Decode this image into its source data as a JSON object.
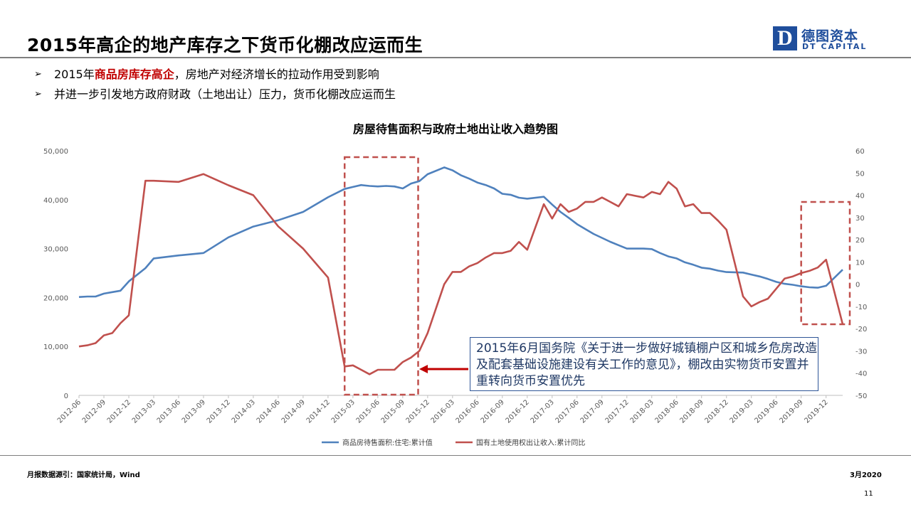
{
  "header": {
    "title": "2015年高企的地产库存之下货币化棚改应运而生",
    "logo_cn": "德图资本",
    "logo_en": "DT CAPITAL",
    "logo_letter": "D"
  },
  "bullets": [
    {
      "mark": "➢",
      "pre": "2015年",
      "highlight": "商品房库存高企",
      "post": "，房地产对经济增长的拉动作用受到影响"
    },
    {
      "mark": "➢",
      "pre": "并进一步引发地方政府财政（土地出让）压力，货币化棚改应运而生",
      "highlight": "",
      "post": ""
    }
  ],
  "callout": {
    "text": "2015年6月国务院《关于进一步做好城镇棚户区和城乡危房改造及配套基础设施建设有关工作的意见》，棚改由实物货币安置并重转向货币安置优先"
  },
  "colors": {
    "blue_series": "#4f81bd",
    "red_series": "#c0504d",
    "dash_box": "#c0504d",
    "arrow": "#c00000"
  },
  "chart_data": {
    "type": "line",
    "title": "房屋待售面积与政府土地出让收入趋势图",
    "x": [
      "2012-06",
      "2012-07",
      "2012-08",
      "2012-09",
      "2012-10",
      "2012-11",
      "2012-12",
      "2013-02",
      "2013-03",
      "2013-06",
      "2013-09",
      "2013-12",
      "2014-03",
      "2014-06",
      "2014-09",
      "2014-12",
      "2015-02",
      "2015-03",
      "2015-04",
      "2015-05",
      "2015-06",
      "2015-07",
      "2015-08",
      "2015-09",
      "2015-10",
      "2015-11",
      "2015-12",
      "2016-02",
      "2016-03",
      "2016-04",
      "2016-05",
      "2016-06",
      "2016-07",
      "2016-08",
      "2016-09",
      "2016-10",
      "2016-11",
      "2016-12",
      "2017-02",
      "2017-03",
      "2017-04",
      "2017-05",
      "2017-06",
      "2017-07",
      "2017-08",
      "2017-09",
      "2017-10",
      "2017-11",
      "2017-12",
      "2018-02",
      "2018-03",
      "2018-04",
      "2018-05",
      "2018-06",
      "2018-07",
      "2018-08",
      "2018-09",
      "2018-10",
      "2018-11",
      "2018-12",
      "2019-02",
      "2019-03",
      "2019-04",
      "2019-05",
      "2019-06",
      "2019-07",
      "2019-08",
      "2019-09",
      "2019-10",
      "2019-11",
      "2019-12",
      "2020-02"
    ],
    "x_tick_labels": [
      "2012-06",
      "2012-09",
      "2012-12",
      "2013-03",
      "2013-06",
      "2013-09",
      "2013-12",
      "2014-03",
      "2014-06",
      "2014-09",
      "2014-12",
      "2015-03",
      "2015-06",
      "2015-09",
      "2015-12",
      "2016-03",
      "2016-06",
      "2016-09",
      "2016-12",
      "2017-03",
      "2017-06",
      "2017-09",
      "2017-12",
      "2018-03",
      "2018-06",
      "2018-09",
      "2018-12",
      "2019-03",
      "2019-06",
      "2019-09",
      "2019-12"
    ],
    "series": [
      {
        "name": "商品房待售面积:住宅:累计值",
        "axis": "left",
        "values": [
          20100,
          20200,
          20200,
          20800,
          21100,
          21400,
          23300,
          26000,
          28000,
          28600,
          29100,
          32300,
          34500,
          35800,
          37500,
          40500,
          42200,
          42600,
          43000,
          42800,
          42700,
          42800,
          42700,
          42300,
          43300,
          43800,
          45200,
          46600,
          46000,
          45000,
          44300,
          43500,
          43000,
          42300,
          41200,
          41000,
          40400,
          40200,
          40600,
          39000,
          37500,
          36300,
          35000,
          34000,
          33000,
          32200,
          31400,
          30700,
          30000,
          30000,
          29900,
          29100,
          28400,
          28000,
          27200,
          26700,
          26100,
          25900,
          25500,
          25200,
          25100,
          24700,
          24300,
          23800,
          23200,
          22800,
          22600,
          22300,
          22100,
          22000,
          22400,
          25700
        ]
      },
      {
        "name": "国有土地使用权出让收入:累计同比",
        "axis": "right",
        "values": [
          -28,
          -27.5,
          -26.5,
          -23,
          -22,
          -17.5,
          -14,
          46.5,
          46.5,
          46,
          49.5,
          44.5,
          40,
          26,
          16,
          3,
          -37,
          -36.5,
          -38.5,
          -40.5,
          -38.5,
          -38.5,
          -38.5,
          -35,
          -33,
          -30,
          -22,
          0,
          5.5,
          5.5,
          8,
          9.5,
          12,
          14,
          14,
          15,
          19,
          15.5,
          36,
          29.5,
          36,
          32.5,
          34,
          37,
          37,
          39,
          37,
          35,
          40.5,
          39,
          41.5,
          40.5,
          46,
          43,
          35,
          36,
          32,
          32,
          28.5,
          24.5,
          -5.5,
          -10,
          -8,
          -6.5,
          -2,
          2.5,
          3.5,
          5,
          6,
          7.5,
          11,
          -18
        ]
      }
    ],
    "left_axis": {
      "ylim": [
        0,
        50000
      ],
      "ticks": [
        "0",
        "10,000",
        "20,000",
        "30,000",
        "40,000",
        "50,000"
      ]
    },
    "right_axis": {
      "ylim": [
        -50,
        60
      ],
      "ticks": [
        "-50",
        "-40",
        "-30",
        "-20",
        "-10",
        "0",
        "10",
        "20",
        "30",
        "40",
        "50",
        "60"
      ]
    },
    "legend": {
      "placement": "bottom",
      "entries": [
        "商品房待售面积:住宅:累计值",
        "国有土地使用权出让收入:累计同比"
      ]
    },
    "highlight_boxes": [
      {
        "x_from": "2015-02",
        "x_to": "2015-10",
        "style": "dashed"
      },
      {
        "x_from": "2019-09",
        "x_to": "2020-02",
        "style": "dashed"
      }
    ]
  },
  "footer": {
    "source": "月报数据源引：国家统计局，Wind",
    "date": "3月2020",
    "page": "11"
  }
}
